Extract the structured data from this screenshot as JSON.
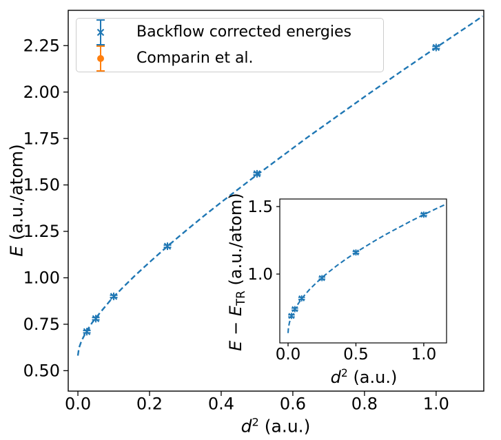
{
  "chart_data": [
    {
      "id": "main",
      "type": "scatter",
      "title": "",
      "xlabel": "d² (a.u.)",
      "ylabel": "E (a.u./atom)",
      "xlim": [
        -0.027,
        1.133
      ],
      "ylim": [
        0.39,
        2.44
      ],
      "grid": false,
      "legend_position": "upper left",
      "axis_color": "#000000",
      "xticks": {
        "values": [
          0.0,
          0.2,
          0.4,
          0.6,
          0.8,
          1.0
        ],
        "labels": [
          "0.0",
          "0.2",
          "0.4",
          "0.6",
          "0.8",
          "1.0"
        ]
      },
      "yticks": {
        "values": [
          0.5,
          0.75,
          1.0,
          1.25,
          1.5,
          1.75,
          2.0,
          2.25
        ],
        "labels": [
          "0.50",
          "0.75",
          "1.00",
          "1.25",
          "1.50",
          "1.75",
          "2.00",
          "2.25"
        ]
      },
      "series": [
        {
          "name": "Backflow corrected energies",
          "marker": "x",
          "color": "#1f77b4",
          "x": [
            0.025,
            0.05,
            0.1,
            0.25,
            0.5,
            1.0
          ],
          "y": [
            0.71,
            0.78,
            0.9,
            1.17,
            1.56,
            2.24
          ],
          "yerr": [
            0.006,
            0.006,
            0.006,
            0.006,
            0.006,
            0.006
          ],
          "points_visible": true
        },
        {
          "name": "Comparin et al.",
          "marker": "o",
          "color": "#ff7f0e",
          "x": [],
          "y": [],
          "yerr": [],
          "points_visible": false
        }
      ],
      "fit_curve": {
        "style": "dashed",
        "color": "#1f77b4",
        "x": [
          0,
          0.003,
          0.01,
          0.023,
          0.04,
          0.063,
          0.09,
          0.123,
          0.16,
          0.203,
          0.25,
          0.303,
          0.36,
          0.423,
          0.49,
          0.563,
          0.64,
          0.723,
          0.81,
          0.903,
          1.0,
          1.103,
          1.13
        ],
        "y": [
          0.581,
          0.622,
          0.66,
          0.709,
          0.759,
          0.815,
          0.877,
          0.943,
          1.013,
          1.089,
          1.17,
          1.256,
          1.346,
          1.441,
          1.54,
          1.645,
          1.755,
          1.869,
          1.988,
          2.112,
          2.24,
          2.373,
          2.409
        ]
      }
    },
    {
      "id": "inset",
      "type": "scatter",
      "title": "",
      "xlabel": "d² (a.u.)",
      "ylabel": "E − E_TR (a.u./atom)",
      "xlim": [
        -0.061,
        1.168
      ],
      "ylim": [
        0.49,
        1.556
      ],
      "grid": false,
      "axis_color": "#000000",
      "xticks": {
        "values": [
          0.0,
          0.5,
          1.0
        ],
        "labels": [
          "0.0",
          "0.5",
          "1.0"
        ]
      },
      "yticks": {
        "values": [
          1.0,
          1.5
        ],
        "labels": [
          "1.0",
          "1.5"
        ]
      },
      "series": [
        {
          "name": "Backflow corrected energies",
          "marker": "x",
          "color": "#1f77b4",
          "x": [
            0.025,
            0.05,
            0.1,
            0.25,
            0.5,
            1.0
          ],
          "y": [
            0.69,
            0.74,
            0.82,
            0.97,
            1.16,
            1.44
          ],
          "yerr": [
            0.008,
            0.008,
            0.008,
            0.008,
            0.008,
            0.008
          ],
          "points_visible": true
        }
      ],
      "fit_curve": {
        "style": "dashed",
        "color": "#1f77b4",
        "x": [
          0,
          0.003,
          0.01,
          0.023,
          0.04,
          0.063,
          0.09,
          0.123,
          0.16,
          0.203,
          0.25,
          0.303,
          0.36,
          0.423,
          0.49,
          0.563,
          0.64,
          0.723,
          0.81,
          0.903,
          1.0,
          1.1,
          1.168
        ],
        "y": [
          0.563,
          0.605,
          0.641,
          0.682,
          0.721,
          0.762,
          0.803,
          0.845,
          0.888,
          0.93,
          0.974,
          1.018,
          1.063,
          1.108,
          1.154,
          1.2,
          1.247,
          1.295,
          1.342,
          1.391,
          1.44,
          1.488,
          1.52
        ]
      }
    }
  ],
  "labels": {
    "main_xlabel_var": "d",
    "main_xlabel_exp": "2",
    "main_xlabel_unit": " (a.u.)",
    "main_ylabel_var": "E",
    "main_ylabel_unit": " (a.u./atom)",
    "inset_xlabel_var": "d",
    "inset_xlabel_exp": "2",
    "inset_xlabel_unit": " (a.u.)",
    "inset_ylabel_var1": "E",
    "inset_ylabel_minus": " − ",
    "inset_ylabel_var2": "E",
    "inset_ylabel_sub": "TR",
    "inset_ylabel_unit": " (a.u./atom)"
  },
  "legend": {
    "items": [
      {
        "label": "Backflow corrected energies",
        "marker": "errorbar-x",
        "color": "#1f77b4"
      },
      {
        "label": "Comparin et al.",
        "marker": "errorbar-circle",
        "color": "#ff7f0e"
      }
    ]
  }
}
